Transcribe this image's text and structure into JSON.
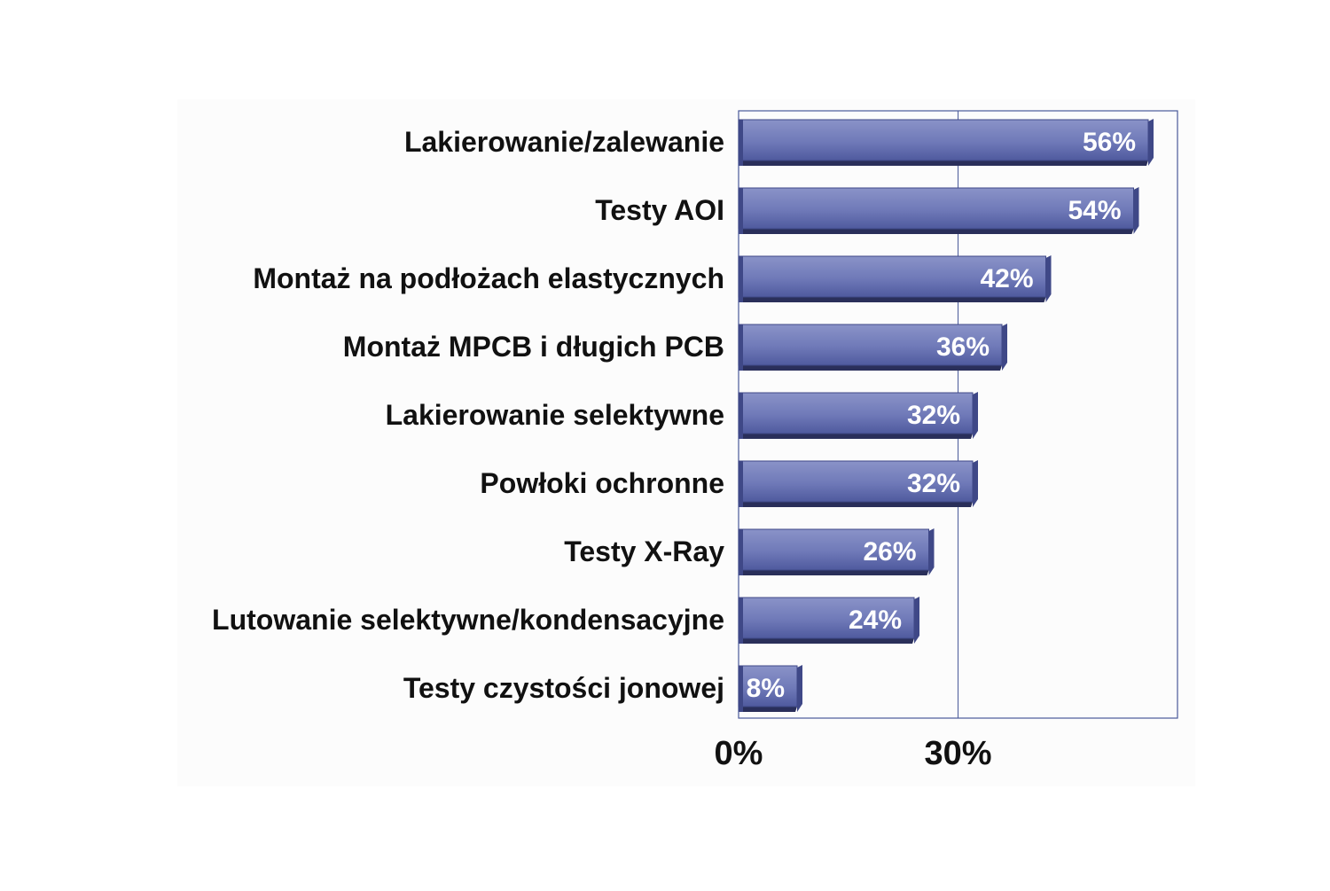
{
  "chart_data": {
    "type": "bar",
    "orientation": "horizontal",
    "categories": [
      "Lakierowanie/zalewanie",
      "Testy AOI",
      "Montaż na podłożach elastycznych",
      "Montaż MPCB i długich PCB",
      "Lakierowanie selektywne",
      "Powłoki ochronne",
      "Testy X-Ray",
      "Lutowanie selektywne/kondensacyjne",
      "Testy czystości jonowej"
    ],
    "values": [
      56,
      54,
      42,
      36,
      32,
      32,
      26,
      24,
      8
    ],
    "data_labels": [
      "56%",
      "54%",
      "42%",
      "36%",
      "32%",
      "32%",
      "26%",
      "24%",
      "8%"
    ],
    "xlim": [
      0,
      60
    ],
    "x_ticks": [
      0,
      30
    ],
    "x_tick_labels": [
      "0%",
      "30%"
    ],
    "grid": true,
    "legend": "none",
    "colors": {
      "bar": "#6f79b8",
      "bar_light": "#8a93c8",
      "bar_dark": "#3f4887",
      "bar_shadow": "#2a2f5a",
      "frame": "#4a5a9a",
      "plot_background": "#fcfcfc",
      "data_label": "#ffffff",
      "text": "#111111"
    }
  }
}
